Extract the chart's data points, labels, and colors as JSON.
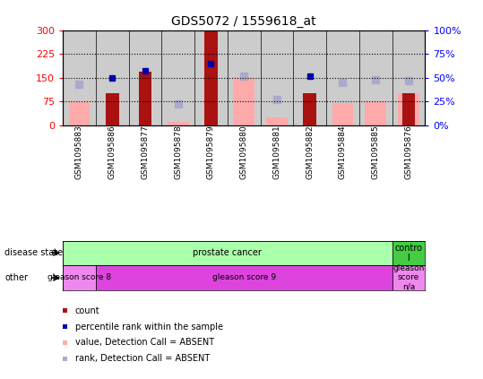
{
  "title": "GDS5072 / 1559618_at",
  "samples": [
    "GSM1095883",
    "GSM1095886",
    "GSM1095877",
    "GSM1095878",
    "GSM1095879",
    "GSM1095880",
    "GSM1095881",
    "GSM1095882",
    "GSM1095884",
    "GSM1095885",
    "GSM1095876"
  ],
  "count": [
    0,
    100,
    170,
    0,
    300,
    0,
    0,
    100,
    0,
    0,
    100
  ],
  "percentile_rank": [
    0,
    50,
    57,
    0,
    65,
    0,
    0,
    52,
    0,
    0,
    0
  ],
  "value_absent": [
    75,
    0,
    0,
    10,
    0,
    152,
    25,
    0,
    70,
    75,
    100
  ],
  "rank_absent": [
    43,
    0,
    0,
    22,
    0,
    52,
    27,
    0,
    45,
    48,
    47
  ],
  "ylim_left": [
    0,
    300
  ],
  "ylim_right": [
    0,
    100
  ],
  "yticks_left": [
    0,
    75,
    150,
    225,
    300
  ],
  "ytick_labels_left": [
    "0",
    "75",
    "150",
    "225",
    "300"
  ],
  "yticks_right": [
    0,
    25,
    50,
    75,
    100
  ],
  "ytick_labels_right": [
    "0%",
    "25%",
    "50%",
    "75%",
    "100%"
  ],
  "hlines": [
    75,
    150,
    225
  ],
  "color_count": "#aa1111",
  "color_percentile": "#0000aa",
  "color_value_absent": "#ffaaaa",
  "color_rank_absent": "#aaaacc",
  "disease_state_groups": [
    {
      "label": "prostate cancer",
      "start": 0,
      "end": 10,
      "color": "#aaffaa"
    },
    {
      "label": "contro\nl",
      "start": 10,
      "end": 11,
      "color": "#44cc44"
    }
  ],
  "other_groups": [
    {
      "label": "gleason score 8",
      "start": 0,
      "end": 1,
      "color": "#ee88ee"
    },
    {
      "label": "gleason score 9",
      "start": 1,
      "end": 10,
      "color": "#dd44dd"
    },
    {
      "label": "gleason\nscore\nn/a",
      "start": 10,
      "end": 11,
      "color": "#ee88ee"
    }
  ],
  "legend_items": [
    {
      "label": "count",
      "color": "#aa1111"
    },
    {
      "label": "percentile rank within the sample",
      "color": "#0000aa"
    },
    {
      "label": "value, Detection Call = ABSENT",
      "color": "#ffaaaa"
    },
    {
      "label": "rank, Detection Call = ABSENT",
      "color": "#aaaacc"
    }
  ],
  "plot_bg": "#cccccc",
  "count_bar_width": 0.4,
  "value_bar_width": 0.65
}
